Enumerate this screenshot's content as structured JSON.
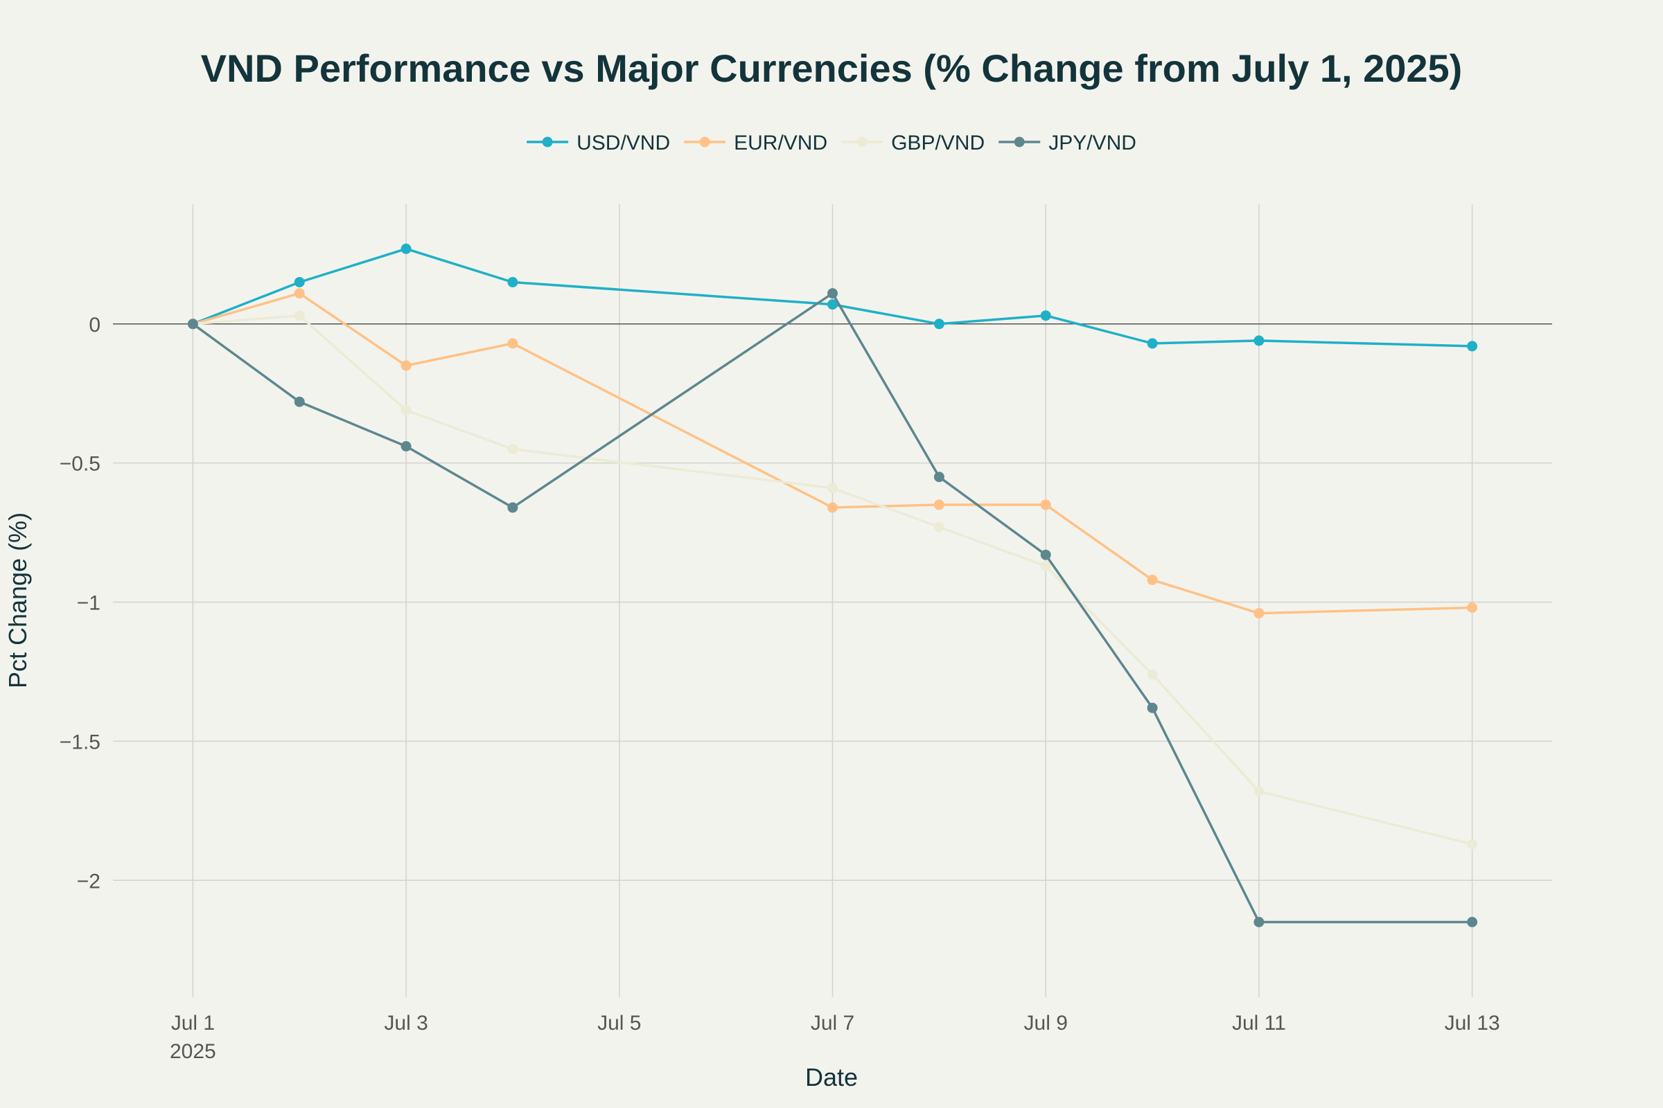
{
  "chart_data": {
    "type": "line",
    "title": "VND Performance vs Major Currencies (% Change from July 1, 2025)",
    "xlabel": "Date",
    "ylabel": "Pct Change (%)",
    "x": [
      "Jul 1",
      "Jul 2",
      "Jul 3",
      "Jul 4",
      "Jul 7",
      "Jul 8",
      "Jul 9",
      "Jul 10",
      "Jul 11",
      "Jul 13"
    ],
    "x_day": [
      1,
      2,
      3,
      4,
      7,
      8,
      9,
      10,
      11,
      13
    ],
    "xlim": [
      0.25,
      13.75
    ],
    "ylim": [
      -2.42,
      0.43
    ],
    "x_ticks": [
      {
        "day": 1,
        "label": "Jul 1",
        "sub": "2025"
      },
      {
        "day": 3,
        "label": "Jul 3",
        "sub": ""
      },
      {
        "day": 5,
        "label": "Jul 5",
        "sub": ""
      },
      {
        "day": 7,
        "label": "Jul 7",
        "sub": ""
      },
      {
        "day": 9,
        "label": "Jul 9",
        "sub": ""
      },
      {
        "day": 11,
        "label": "Jul 11",
        "sub": ""
      },
      {
        "day": 13,
        "label": "Jul 13",
        "sub": ""
      }
    ],
    "y_ticks": [
      {
        "value": 0,
        "label": "0"
      },
      {
        "value": -0.5,
        "label": "−0.5"
      },
      {
        "value": -1,
        "label": "−1"
      },
      {
        "value": -1.5,
        "label": "−1.5"
      },
      {
        "value": -2,
        "label": "−2"
      }
    ],
    "legend_position": "top-center",
    "grid": true,
    "series": [
      {
        "name": "USD/VND",
        "color": "#1fb0c8",
        "values": [
          0,
          0.15,
          0.27,
          0.15,
          0.07,
          0,
          0.03,
          -0.07,
          -0.06,
          -0.08
        ]
      },
      {
        "name": "EUR/VND",
        "color": "#ffc185",
        "values": [
          0,
          0.11,
          -0.15,
          -0.07,
          -0.66,
          -0.65,
          -0.65,
          -0.92,
          -1.04,
          -1.02
        ]
      },
      {
        "name": "GBP/VND",
        "color": "#ecebd5",
        "values": [
          0,
          0.03,
          -0.31,
          -0.45,
          -0.59,
          -0.73,
          -0.87,
          -1.26,
          -1.68,
          -1.87
        ]
      },
      {
        "name": "JPY/VND",
        "color": "#5d878f",
        "values": [
          0,
          -0.28,
          -0.44,
          -0.66,
          0.11,
          -0.55,
          -0.83,
          -1.38,
          -2.15,
          -2.15
        ]
      }
    ]
  }
}
